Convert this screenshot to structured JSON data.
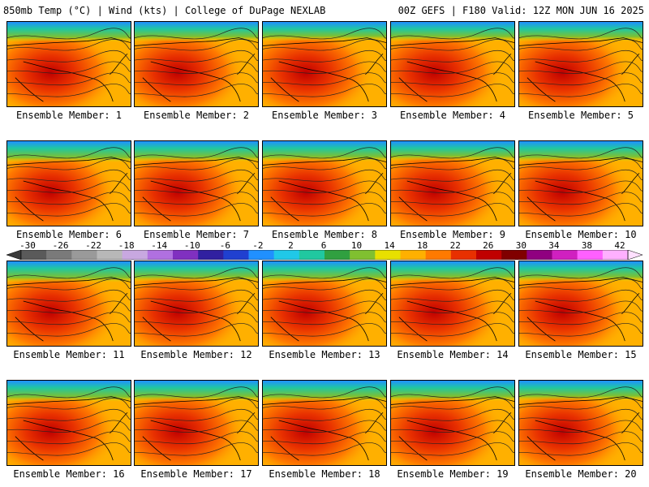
{
  "header": {
    "left": "850mb Temp (°C) | Wind (kts) | College of DuPage NEXLAB",
    "right": "00Z GEFS | F180 Valid: 12Z MON JUN 16 2025"
  },
  "panels": [
    {
      "label": "Ensemble Member: 1",
      "heat": 0.72,
      "cool": 0.35
    },
    {
      "label": "Ensemble Member: 2",
      "heat": 0.7,
      "cool": 0.3
    },
    {
      "label": "Ensemble Member: 3",
      "heat": 0.75,
      "cool": 0.25
    },
    {
      "label": "Ensemble Member: 4",
      "heat": 0.8,
      "cool": 0.28
    },
    {
      "label": "Ensemble Member: 5",
      "heat": 0.78,
      "cool": 0.3
    },
    {
      "label": "Ensemble Member: 6",
      "heat": 0.7,
      "cool": 0.45
    },
    {
      "label": "Ensemble Member: 7",
      "heat": 0.76,
      "cool": 0.4
    },
    {
      "label": "Ensemble Member: 8",
      "heat": 0.72,
      "cool": 0.38
    },
    {
      "label": "Ensemble Member: 9",
      "heat": 0.82,
      "cool": 0.3
    },
    {
      "label": "Ensemble Member: 10",
      "heat": 0.84,
      "cool": 0.4
    },
    {
      "label": "Ensemble Member: 11",
      "heat": 0.78,
      "cool": 0.45
    },
    {
      "label": "Ensemble Member: 12",
      "heat": 0.74,
      "cool": 0.35
    },
    {
      "label": "Ensemble Member: 13",
      "heat": 0.7,
      "cool": 0.4
    },
    {
      "label": "Ensemble Member: 14",
      "heat": 0.76,
      "cool": 0.35
    },
    {
      "label": "Ensemble Member: 15",
      "heat": 0.74,
      "cool": 0.38
    },
    {
      "label": "Ensemble Member: 16",
      "heat": 0.72,
      "cool": 0.45
    },
    {
      "label": "Ensemble Member: 17",
      "heat": 0.74,
      "cool": 0.4
    },
    {
      "label": "Ensemble Member: 18",
      "heat": 0.82,
      "cool": 0.42
    },
    {
      "label": "Ensemble Member: 19",
      "heat": 0.78,
      "cool": 0.4
    },
    {
      "label": "Ensemble Member: 20",
      "heat": 0.74,
      "cool": 0.35
    }
  ],
  "colorbar": {
    "ticks": [
      "-30",
      "-26",
      "-22",
      "-18",
      "-14",
      "-10",
      "-6",
      "-2",
      "2",
      "6",
      "10",
      "14",
      "18",
      "22",
      "26",
      "30",
      "34",
      "38",
      "42"
    ],
    "colors": [
      "#5a5a5a",
      "#7a7a7a",
      "#9a9a9a",
      "#b8b8b8",
      "#c8a8e0",
      "#b070e0",
      "#8030c0",
      "#3020a0",
      "#2040d0",
      "#2090ff",
      "#20c8e8",
      "#20c8a0",
      "#30a040",
      "#80c030",
      "#e8e000",
      "#ffb000",
      "#ff7a00",
      "#e83000",
      "#c00000",
      "#800000",
      "#900080",
      "#d020c0",
      "#ff60ff",
      "#ffb0ff"
    ]
  }
}
